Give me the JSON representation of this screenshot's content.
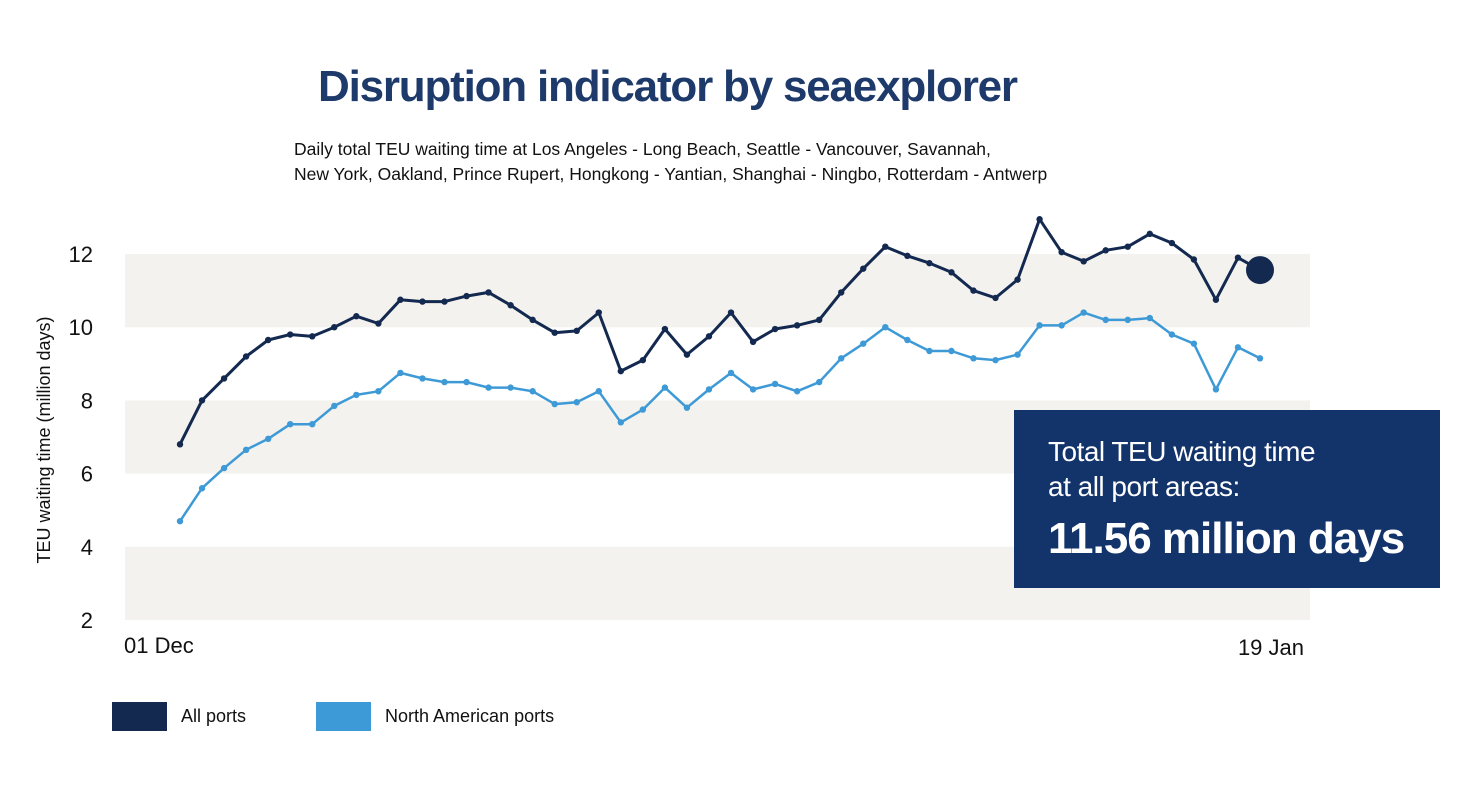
{
  "title": "Disruption indicator by seaexplorer",
  "subtitle_lines": [
    "Daily total TEU waiting time at Los Angeles - Long Beach, Seattle - Vancouver, Savannah,",
    "New York, Oakland, Prince Rupert, Hongkong - Yantian, Shanghai - Ningbo, Rotterdam - Antwerp"
  ],
  "callout": {
    "line1": "Total TEU waiting time",
    "line2": "at all port areas:",
    "value": "11.56 million days"
  },
  "colors": {
    "title": "#1d3a6b",
    "all_ports": "#13294f",
    "north_american_ports": "#3e9ad6",
    "band": "#f4f2ee",
    "callout_bg": "#13336b"
  },
  "chart_data": {
    "type": "line",
    "title": "Disruption indicator by seaexplorer",
    "ylabel": "TEU waiting time (million days)",
    "xlabel": "",
    "ylim": [
      2,
      12.9
    ],
    "y_ticks": [
      "12",
      "10",
      "8",
      "6",
      "4",
      "2"
    ],
    "x_tick_labels": [
      "01 Dec",
      "19 Jan"
    ],
    "legend_position": "bottom-left",
    "grid": "alternating horizontal bands",
    "series": [
      {
        "name": "All ports",
        "color": "#13294f",
        "values": [
          6.8,
          8.0,
          8.6,
          9.2,
          9.65,
          9.8,
          9.75,
          10.0,
          10.3,
          10.1,
          10.75,
          10.7,
          10.7,
          10.85,
          10.95,
          10.6,
          10.2,
          9.85,
          9.9,
          10.4,
          8.8,
          9.1,
          9.95,
          9.25,
          9.75,
          10.4,
          9.6,
          9.95,
          10.05,
          10.2,
          10.95,
          11.6,
          12.2,
          11.95,
          11.75,
          11.5,
          11.0,
          10.8,
          11.3,
          12.95,
          12.05,
          11.8,
          12.1,
          12.2,
          12.55,
          12.3,
          11.85,
          10.75,
          11.9,
          11.56
        ]
      },
      {
        "name": "North American ports",
        "color": "#3e9ad6",
        "values": [
          4.7,
          5.6,
          6.15,
          6.65,
          6.95,
          7.35,
          7.35,
          7.85,
          8.15,
          8.25,
          8.75,
          8.6,
          8.5,
          8.5,
          8.35,
          8.35,
          8.25,
          7.9,
          7.95,
          8.25,
          7.4,
          7.75,
          8.35,
          7.8,
          8.3,
          8.75,
          8.3,
          8.45,
          8.25,
          8.5,
          9.15,
          9.55,
          10.0,
          9.65,
          9.35,
          9.35,
          9.15,
          9.1,
          9.25,
          10.05,
          10.05,
          10.4,
          10.2,
          10.2,
          10.25,
          9.8,
          9.55,
          8.3,
          9.45,
          9.15
        ]
      }
    ]
  },
  "legend": [
    {
      "label": "All ports",
      "color": "#13294f"
    },
    {
      "label": "North American ports",
      "color": "#3e9ad6"
    }
  ]
}
